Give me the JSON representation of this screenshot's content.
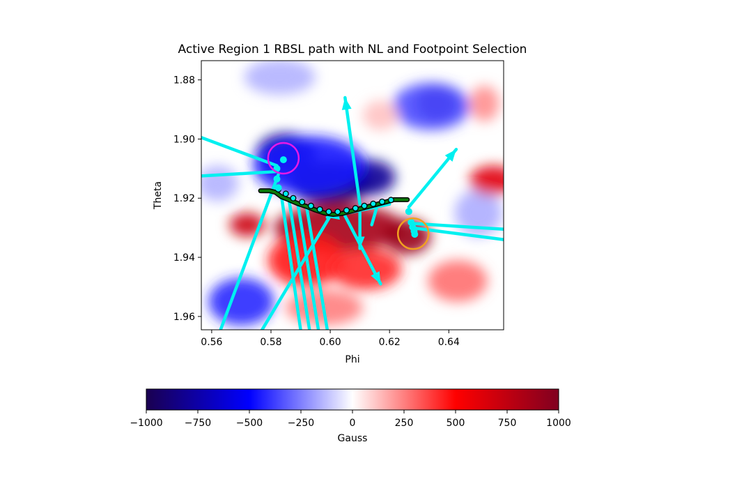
{
  "chart_data": {
    "type": "heatmap",
    "title": "Active Region 1 RBSL path with NL and Footpoint Selection",
    "xlabel": "Phi",
    "ylabel": "Theta",
    "xlim": [
      0.5565,
      0.6585
    ],
    "ylim": [
      1.9645,
      1.8735
    ],
    "y_inverted": true,
    "xticks": [
      0.56,
      0.58,
      0.6,
      0.62,
      0.64
    ],
    "xtick_labels": [
      "0.56",
      "0.58",
      "0.60",
      "0.62",
      "0.64"
    ],
    "yticks": [
      1.88,
      1.9,
      1.92,
      1.94,
      1.96
    ],
    "ytick_labels": [
      "1.88",
      "1.90",
      "1.92",
      "1.94",
      "1.96"
    ],
    "grid": false,
    "colormap": "seismic",
    "colorbar": {
      "label": "Gauss",
      "orientation": "horizontal",
      "placement": "bottom",
      "range": [
        -1000,
        1000
      ],
      "ticks": [
        -1000,
        -750,
        -500,
        -250,
        0,
        250,
        500,
        750,
        1000
      ],
      "tick_labels": [
        "−1000",
        "−750",
        "−500",
        "−250",
        "0",
        "250",
        "500",
        "750",
        "1000"
      ],
      "stops": [
        {
          "value": -1000,
          "color": "#1a0050"
        },
        {
          "value": -500,
          "color": "#0000ff"
        },
        {
          "value": 0,
          "color": "#ffffff"
        },
        {
          "value": 500,
          "color": "#ff0000"
        },
        {
          "value": 1000,
          "color": "#800020"
        }
      ]
    },
    "field_blobs": [
      {
        "phi": 0.6,
        "theta": 1.915,
        "rphi": 0.014,
        "rtheta": 0.0075,
        "gauss": -1000
      },
      {
        "phi": 0.585,
        "theta": 1.905,
        "rphi": 0.01,
        "rtheta": 0.007,
        "gauss": -850
      },
      {
        "phi": 0.613,
        "theta": 1.913,
        "rphi": 0.009,
        "rtheta": 0.006,
        "gauss": -800
      },
      {
        "phi": 0.593,
        "theta": 1.909,
        "rphi": 0.019,
        "rtheta": 0.01,
        "gauss": -450
      },
      {
        "phi": 0.636,
        "theta": 1.888,
        "rphi": 0.007,
        "rtheta": 0.006,
        "gauss": -800
      },
      {
        "phi": 0.634,
        "theta": 1.889,
        "rphi": 0.013,
        "rtheta": 0.008,
        "gauss": -350
      },
      {
        "phi": 0.57,
        "theta": 1.955,
        "rphi": 0.011,
        "rtheta": 0.008,
        "gauss": -420
      },
      {
        "phi": 0.583,
        "theta": 1.879,
        "rphi": 0.012,
        "rtheta": 0.006,
        "gauss": -150
      },
      {
        "phi": 0.65,
        "theta": 1.925,
        "rphi": 0.008,
        "rtheta": 0.008,
        "gauss": -160
      },
      {
        "phi": 0.562,
        "theta": 1.915,
        "rphi": 0.007,
        "rtheta": 0.006,
        "gauss": -150
      },
      {
        "phi": 0.603,
        "theta": 1.93,
        "rphi": 0.022,
        "rtheta": 0.008,
        "gauss": 850
      },
      {
        "phi": 0.626,
        "theta": 1.933,
        "rphi": 0.008,
        "rtheta": 0.006,
        "gauss": 900
      },
      {
        "phi": 0.572,
        "theta": 1.929,
        "rphi": 0.006,
        "rtheta": 0.004,
        "gauss": 700
      },
      {
        "phi": 0.592,
        "theta": 1.941,
        "rphi": 0.013,
        "rtheta": 0.009,
        "gauss": 450
      },
      {
        "phi": 0.612,
        "theta": 1.944,
        "rphi": 0.012,
        "rtheta": 0.007,
        "gauss": 420
      },
      {
        "phi": 0.655,
        "theta": 1.914,
        "rphi": 0.008,
        "rtheta": 0.005,
        "gauss": 620
      },
      {
        "phi": 0.652,
        "theta": 1.888,
        "rphi": 0.005,
        "rtheta": 0.006,
        "gauss": 220
      },
      {
        "phi": 0.598,
        "theta": 1.957,
        "rphi": 0.013,
        "rtheta": 0.006,
        "gauss": 250
      },
      {
        "phi": 0.643,
        "theta": 1.948,
        "rphi": 0.01,
        "rtheta": 0.007,
        "gauss": 280
      },
      {
        "phi": 0.617,
        "theta": 1.892,
        "rphi": 0.006,
        "rtheta": 0.005,
        "gauss": 120
      }
    ],
    "neutral_line": [
      [
        0.5765,
        1.9175
      ],
      [
        0.5795,
        1.9175
      ],
      [
        0.5815,
        1.918
      ],
      [
        0.5835,
        1.9195
      ],
      [
        0.586,
        1.9205
      ],
      [
        0.589,
        1.9218
      ],
      [
        0.592,
        1.9228
      ],
      [
        0.595,
        1.924
      ],
      [
        0.598,
        1.925
      ],
      [
        0.601,
        1.9255
      ],
      [
        0.604,
        1.9252
      ],
      [
        0.607,
        1.9244
      ],
      [
        0.61,
        1.9236
      ],
      [
        0.613,
        1.9228
      ],
      [
        0.616,
        1.922
      ],
      [
        0.619,
        1.9212
      ],
      [
        0.6215,
        1.9205
      ],
      [
        0.624,
        1.9205
      ],
      [
        0.626,
        1.9205
      ]
    ],
    "path_points": [
      [
        0.5825,
        1.917
      ],
      [
        0.585,
        1.9185
      ],
      [
        0.5875,
        1.92
      ],
      [
        0.5905,
        1.9213
      ],
      [
        0.5935,
        1.9226
      ],
      [
        0.5965,
        1.9238
      ],
      [
        0.5995,
        1.9246
      ],
      [
        0.6025,
        1.9246
      ],
      [
        0.6055,
        1.9241
      ],
      [
        0.6085,
        1.9234
      ],
      [
        0.6115,
        1.9226
      ],
      [
        0.6145,
        1.9219
      ],
      [
        0.6175,
        1.9212
      ],
      [
        0.6205,
        1.9206
      ]
    ],
    "footpoint_markers": [
      [
        0.5842,
        1.907
      ],
      [
        0.582,
        1.91
      ],
      [
        0.582,
        1.9135
      ],
      [
        0.5825,
        1.9165
      ],
      [
        0.6265,
        1.9245
      ],
      [
        0.6273,
        1.9282
      ],
      [
        0.6278,
        1.9298
      ],
      [
        0.6283,
        1.9312
      ],
      [
        0.6285,
        1.9322
      ]
    ],
    "footpoint_circles": [
      {
        "phi": 0.5842,
        "theta": 1.9065,
        "color": "#e619e6"
      },
      {
        "phi": 0.628,
        "theta": 1.932,
        "color": "#f0a020"
      }
    ],
    "field_vectors": [
      {
        "from": [
          0.582,
          1.909
        ],
        "to": [
          0.5565,
          1.8995
        ],
        "head": false
      },
      {
        "from": [
          0.582,
          1.911
        ],
        "to": [
          0.5565,
          1.9125
        ],
        "head": false
      },
      {
        "from": [
          0.5825,
          1.912
        ],
        "to": [
          0.563,
          1.9645
        ],
        "head": false
      },
      {
        "from": [
          0.5835,
          1.919
        ],
        "to": [
          0.59,
          1.9645
        ],
        "head": false
      },
      {
        "from": [
          0.586,
          1.92
        ],
        "to": [
          0.593,
          1.9645
        ],
        "head": false
      },
      {
        "from": [
          0.589,
          1.9215
        ],
        "to": [
          0.596,
          1.9645
        ],
        "head": false
      },
      {
        "from": [
          0.592,
          1.9228
        ],
        "to": [
          0.599,
          1.9645
        ],
        "head": false
      },
      {
        "from": [
          0.6,
          1.926
        ],
        "to": [
          0.577,
          1.9645
        ],
        "head": false
      },
      {
        "from": [
          0.627,
          1.9285
        ],
        "to": [
          0.6585,
          1.9305
        ],
        "head": false
      },
      {
        "from": [
          0.6275,
          1.93
        ],
        "to": [
          0.6585,
          1.934
        ],
        "head": false
      },
      {
        "from": [
          0.61,
          1.922
        ],
        "to": [
          0.605,
          1.886
        ],
        "head": true
      },
      {
        "from": [
          0.6265,
          1.923
        ],
        "to": [
          0.6425,
          1.9035
        ],
        "head": true
      },
      {
        "from": [
          0.605,
          1.926
        ],
        "to": [
          0.617,
          1.949
        ],
        "head": true
      },
      {
        "from": [
          0.61,
          1.925
        ],
        "to": [
          0.61,
          1.937
        ],
        "head": true
      },
      {
        "from": [
          0.616,
          1.922
        ],
        "to": [
          0.614,
          1.929
        ],
        "head": false
      },
      {
        "from": [
          0.62,
          1.922
        ],
        "to": [
          0.599,
          1.9265
        ],
        "head": true
      }
    ]
  }
}
